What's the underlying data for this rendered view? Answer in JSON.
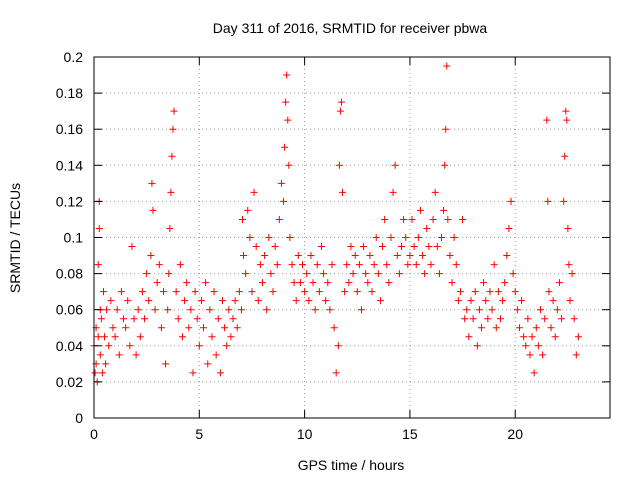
{
  "chart_data": {
    "type": "scatter",
    "title": "Day 311 of 2016, SRMTID for receiver pbwa",
    "xlabel": "GPS time / hours",
    "ylabel": "SRMTID / TECUs",
    "xlim": [
      0,
      24.5
    ],
    "ylim": [
      0,
      0.2
    ],
    "xticks": [
      0,
      5,
      10,
      15,
      20
    ],
    "xtick_labels": [
      "0",
      "5",
      "10",
      "15",
      "20"
    ],
    "yticks": [
      0,
      0.02,
      0.04,
      0.06,
      0.08,
      0.1,
      0.12,
      0.14,
      0.16,
      0.18,
      0.2
    ],
    "ytick_labels": [
      "0",
      "0.02",
      "0.04",
      "0.06",
      "0.08",
      "0.1",
      "0.12",
      "0.14",
      "0.16",
      "0.18",
      "0.2"
    ],
    "grid": true,
    "marker": "+",
    "colors": {
      "series": "#ff0000",
      "grid": "#a0a0a0",
      "axis": "#000000"
    },
    "series": [
      {
        "name": "SRMTID",
        "points": [
          [
            0.0,
            0.04
          ],
          [
            0.05,
            0.025
          ],
          [
            0.1,
            0.03
          ],
          [
            0.1,
            0.05
          ],
          [
            0.15,
            0.02
          ],
          [
            0.2,
            0.045
          ],
          [
            0.2,
            0.085
          ],
          [
            0.25,
            0.105
          ],
          [
            0.25,
            0.12
          ],
          [
            0.3,
            0.06
          ],
          [
            0.3,
            0.035
          ],
          [
            0.35,
            0.055
          ],
          [
            0.4,
            0.025
          ],
          [
            0.45,
            0.07
          ],
          [
            0.5,
            0.045
          ],
          [
            0.55,
            0.03
          ],
          [
            0.6,
            0.06
          ],
          [
            0.7,
            0.04
          ],
          [
            0.8,
            0.065
          ],
          [
            0.9,
            0.05
          ],
          [
            1.0,
            0.045
          ],
          [
            1.1,
            0.06
          ],
          [
            1.2,
            0.035
          ],
          [
            1.3,
            0.07
          ],
          [
            1.4,
            0.055
          ],
          [
            1.5,
            0.05
          ],
          [
            1.6,
            0.065
          ],
          [
            1.7,
            0.04
          ],
          [
            1.8,
            0.095
          ],
          [
            1.9,
            0.055
          ],
          [
            2.0,
            0.035
          ],
          [
            2.1,
            0.06
          ],
          [
            2.2,
            0.045
          ],
          [
            2.3,
            0.07
          ],
          [
            2.4,
            0.055
          ],
          [
            2.5,
            0.08
          ],
          [
            2.6,
            0.065
          ],
          [
            2.7,
            0.09
          ],
          [
            2.75,
            0.13
          ],
          [
            2.8,
            0.115
          ],
          [
            2.9,
            0.06
          ],
          [
            3.0,
            0.075
          ],
          [
            3.1,
            0.085
          ],
          [
            3.2,
            0.05
          ],
          [
            3.3,
            0.07
          ],
          [
            3.4,
            0.03
          ],
          [
            3.5,
            0.06
          ],
          [
            3.55,
            0.08
          ],
          [
            3.6,
            0.105
          ],
          [
            3.65,
            0.125
          ],
          [
            3.7,
            0.145
          ],
          [
            3.75,
            0.16
          ],
          [
            3.8,
            0.17
          ],
          [
            3.9,
            0.07
          ],
          [
            4.0,
            0.055
          ],
          [
            4.1,
            0.085
          ],
          [
            4.2,
            0.045
          ],
          [
            4.3,
            0.065
          ],
          [
            4.4,
            0.075
          ],
          [
            4.5,
            0.05
          ],
          [
            4.6,
            0.06
          ],
          [
            4.7,
            0.025
          ],
          [
            4.8,
            0.07
          ],
          [
            4.9,
            0.055
          ],
          [
            5.0,
            0.04
          ],
          [
            5.1,
            0.065
          ],
          [
            5.2,
            0.05
          ],
          [
            5.3,
            0.075
          ],
          [
            5.4,
            0.03
          ],
          [
            5.5,
            0.06
          ],
          [
            5.6,
            0.045
          ],
          [
            5.7,
            0.07
          ],
          [
            5.8,
            0.035
          ],
          [
            5.9,
            0.055
          ],
          [
            6.0,
            0.025
          ],
          [
            6.1,
            0.065
          ],
          [
            6.2,
            0.05
          ],
          [
            6.3,
            0.04
          ],
          [
            6.4,
            0.06
          ],
          [
            6.5,
            0.045
          ],
          [
            6.6,
            0.055
          ],
          [
            6.7,
            0.065
          ],
          [
            6.8,
            0.05
          ],
          [
            6.9,
            0.07
          ],
          [
            7.0,
            0.06
          ],
          [
            7.05,
            0.11
          ],
          [
            7.1,
            0.09
          ],
          [
            7.2,
            0.08
          ],
          [
            7.3,
            0.115
          ],
          [
            7.4,
            0.1
          ],
          [
            7.5,
            0.07
          ],
          [
            7.6,
            0.125
          ],
          [
            7.7,
            0.095
          ],
          [
            7.8,
            0.065
          ],
          [
            7.9,
            0.085
          ],
          [
            8.0,
            0.075
          ],
          [
            8.1,
            0.09
          ],
          [
            8.2,
            0.06
          ],
          [
            8.3,
            0.1
          ],
          [
            8.4,
            0.08
          ],
          [
            8.5,
            0.07
          ],
          [
            8.6,
            0.095
          ],
          [
            8.7,
            0.085
          ],
          [
            8.8,
            0.11
          ],
          [
            8.9,
            0.13
          ],
          [
            9.0,
            0.12
          ],
          [
            9.05,
            0.15
          ],
          [
            9.1,
            0.175
          ],
          [
            9.15,
            0.19
          ],
          [
            9.2,
            0.165
          ],
          [
            9.25,
            0.14
          ],
          [
            9.3,
            0.1
          ],
          [
            9.4,
            0.085
          ],
          [
            9.5,
            0.075
          ],
          [
            9.6,
            0.065
          ],
          [
            9.7,
            0.09
          ],
          [
            9.8,
            0.075
          ],
          [
            9.9,
            0.085
          ],
          [
            10.0,
            0.07
          ],
          [
            10.1,
            0.08
          ],
          [
            10.2,
            0.065
          ],
          [
            10.3,
            0.09
          ],
          [
            10.4,
            0.075
          ],
          [
            10.5,
            0.06
          ],
          [
            10.6,
            0.085
          ],
          [
            10.7,
            0.07
          ],
          [
            10.8,
            0.095
          ],
          [
            10.9,
            0.08
          ],
          [
            11.0,
            0.065
          ],
          [
            11.1,
            0.075
          ],
          [
            11.2,
            0.06
          ],
          [
            11.3,
            0.085
          ],
          [
            11.4,
            0.05
          ],
          [
            11.5,
            0.025
          ],
          [
            11.6,
            0.04
          ],
          [
            11.65,
            0.14
          ],
          [
            11.7,
            0.17
          ],
          [
            11.75,
            0.175
          ],
          [
            11.8,
            0.125
          ],
          [
            11.9,
            0.07
          ],
          [
            12.0,
            0.085
          ],
          [
            12.1,
            0.075
          ],
          [
            12.2,
            0.095
          ],
          [
            12.3,
            0.08
          ],
          [
            12.4,
            0.09
          ],
          [
            12.5,
            0.07
          ],
          [
            12.6,
            0.085
          ],
          [
            12.7,
            0.06
          ],
          [
            12.8,
            0.095
          ],
          [
            12.9,
            0.08
          ],
          [
            13.0,
            0.075
          ],
          [
            13.1,
            0.09
          ],
          [
            13.2,
            0.07
          ],
          [
            13.3,
            0.085
          ],
          [
            13.4,
            0.1
          ],
          [
            13.5,
            0.08
          ],
          [
            13.6,
            0.065
          ],
          [
            13.7,
            0.095
          ],
          [
            13.8,
            0.11
          ],
          [
            13.9,
            0.085
          ],
          [
            14.0,
            0.075
          ],
          [
            14.1,
            0.1
          ],
          [
            14.2,
            0.125
          ],
          [
            14.3,
            0.14
          ],
          [
            14.4,
            0.09
          ],
          [
            14.5,
            0.08
          ],
          [
            14.6,
            0.095
          ],
          [
            14.7,
            0.11
          ],
          [
            14.8,
            0.1
          ],
          [
            14.9,
            0.085
          ],
          [
            15.0,
            0.09
          ],
          [
            15.1,
            0.11
          ],
          [
            15.2,
            0.095
          ],
          [
            15.3,
            0.085
          ],
          [
            15.4,
            0.1
          ],
          [
            15.5,
            0.115
          ],
          [
            15.6,
            0.09
          ],
          [
            15.7,
            0.08
          ],
          [
            15.8,
            0.105
          ],
          [
            15.9,
            0.095
          ],
          [
            16.0,
            0.085
          ],
          [
            16.1,
            0.11
          ],
          [
            16.2,
            0.125
          ],
          [
            16.3,
            0.095
          ],
          [
            16.4,
            0.08
          ],
          [
            16.5,
            0.1
          ],
          [
            16.6,
            0.115
          ],
          [
            16.65,
            0.14
          ],
          [
            16.7,
            0.16
          ],
          [
            16.75,
            0.195
          ],
          [
            16.8,
            0.11
          ],
          [
            16.9,
            0.09
          ],
          [
            17.0,
            0.075
          ],
          [
            17.1,
            0.1
          ],
          [
            17.2,
            0.085
          ],
          [
            17.3,
            0.065
          ],
          [
            17.4,
            0.07
          ],
          [
            17.5,
            0.11
          ],
          [
            17.6,
            0.055
          ],
          [
            17.7,
            0.06
          ],
          [
            17.8,
            0.045
          ],
          [
            17.9,
            0.065
          ],
          [
            18.0,
            0.055
          ],
          [
            18.1,
            0.07
          ],
          [
            18.2,
            0.04
          ],
          [
            18.3,
            0.06
          ],
          [
            18.4,
            0.05
          ],
          [
            18.5,
            0.075
          ],
          [
            18.6,
            0.065
          ],
          [
            18.7,
            0.055
          ],
          [
            18.8,
            0.07
          ],
          [
            18.9,
            0.06
          ],
          [
            19.0,
            0.085
          ],
          [
            19.1,
            0.05
          ],
          [
            19.2,
            0.07
          ],
          [
            19.3,
            0.055
          ],
          [
            19.4,
            0.065
          ],
          [
            19.5,
            0.075
          ],
          [
            19.6,
            0.09
          ],
          [
            19.7,
            0.105
          ],
          [
            19.8,
            0.12
          ],
          [
            19.9,
            0.08
          ],
          [
            20.0,
            0.07
          ],
          [
            20.1,
            0.06
          ],
          [
            20.2,
            0.05
          ],
          [
            20.3,
            0.065
          ],
          [
            20.4,
            0.045
          ],
          [
            20.5,
            0.04
          ],
          [
            20.6,
            0.055
          ],
          [
            20.7,
            0.035
          ],
          [
            20.8,
            0.045
          ],
          [
            20.9,
            0.025
          ],
          [
            21.0,
            0.05
          ],
          [
            21.1,
            0.04
          ],
          [
            21.2,
            0.06
          ],
          [
            21.3,
            0.035
          ],
          [
            21.4,
            0.055
          ],
          [
            21.5,
            0.165
          ],
          [
            21.55,
            0.12
          ],
          [
            21.6,
            0.07
          ],
          [
            21.7,
            0.05
          ],
          [
            21.8,
            0.065
          ],
          [
            21.9,
            0.045
          ],
          [
            22.0,
            0.06
          ],
          [
            22.1,
            0.075
          ],
          [
            22.2,
            0.055
          ],
          [
            22.3,
            0.12
          ],
          [
            22.35,
            0.145
          ],
          [
            22.4,
            0.17
          ],
          [
            22.45,
            0.165
          ],
          [
            22.5,
            0.105
          ],
          [
            22.55,
            0.085
          ],
          [
            22.6,
            0.065
          ],
          [
            22.7,
            0.08
          ],
          [
            22.8,
            0.055
          ],
          [
            22.9,
            0.035
          ],
          [
            23.0,
            0.045
          ]
        ]
      }
    ]
  }
}
